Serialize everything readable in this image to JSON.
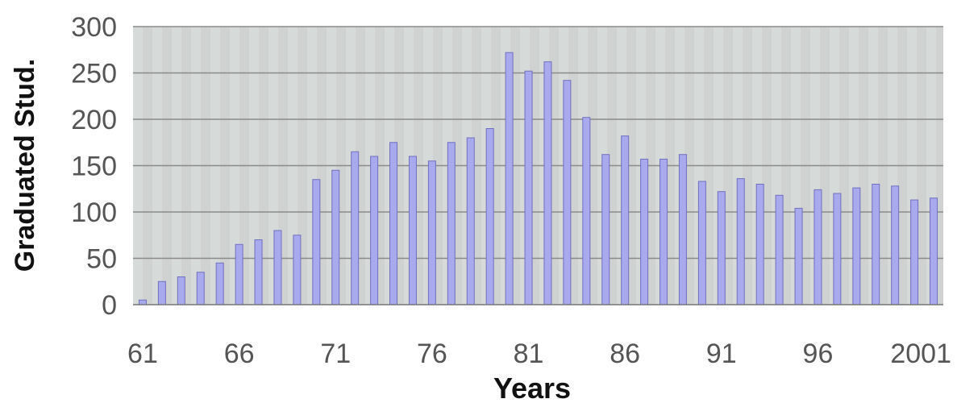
{
  "chart_data": {
    "type": "bar",
    "title": "",
    "xlabel": "Years",
    "ylabel": "Graduated Stud.",
    "ylim": [
      0,
      300
    ],
    "yticks": [
      "0",
      "50",
      "100",
      "150",
      "200",
      "250",
      "300"
    ],
    "xtick_labels": [
      {
        "year": 1961,
        "label": "61"
      },
      {
        "year": 1966,
        "label": "66"
      },
      {
        "year": 1971,
        "label": "71"
      },
      {
        "year": 1976,
        "label": "76"
      },
      {
        "year": 1981,
        "label": "81"
      },
      {
        "year": 1986,
        "label": "86"
      },
      {
        "year": 1991,
        "label": "91"
      },
      {
        "year": 1996,
        "label": "96"
      },
      {
        "year": 2001,
        "label": "2001"
      }
    ],
    "x": [
      1961,
      1962,
      1963,
      1964,
      1965,
      1966,
      1967,
      1968,
      1969,
      1970,
      1971,
      1972,
      1973,
      1974,
      1975,
      1976,
      1977,
      1978,
      1979,
      1980,
      1981,
      1982,
      1983,
      1984,
      1985,
      1986,
      1987,
      1988,
      1989,
      1990,
      1991,
      1992,
      1993,
      1994,
      1995,
      1996,
      1997,
      1998,
      1999,
      2000,
      2001,
      2002
    ],
    "values": [
      5,
      25,
      30,
      35,
      45,
      65,
      70,
      80,
      75,
      135,
      145,
      165,
      160,
      175,
      160,
      155,
      175,
      180,
      190,
      272,
      252,
      262,
      242,
      202,
      162,
      182,
      157,
      157,
      162,
      133,
      122,
      136,
      130,
      118,
      104,
      124,
      120,
      126,
      130,
      128,
      113,
      115
    ],
    "bar_color": "#a9a9ee",
    "bar_edge_color": "#7070c0",
    "plot_background": "#cfd2d0",
    "grid": true,
    "legend": "none"
  }
}
